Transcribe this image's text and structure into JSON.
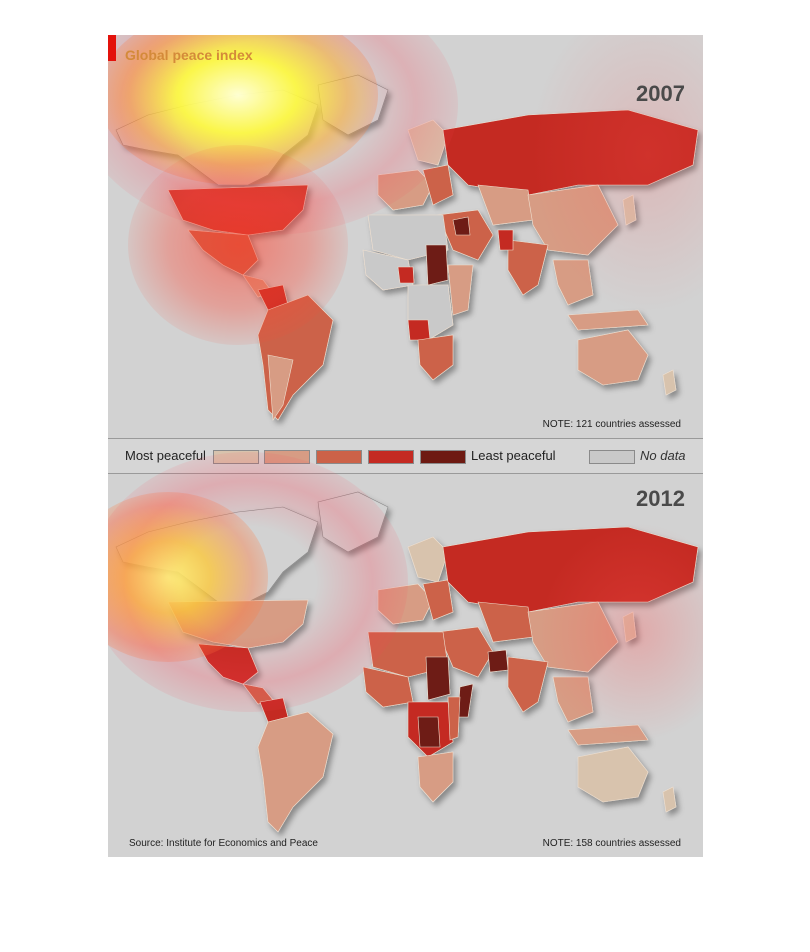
{
  "title": "Global peace index",
  "panels": [
    {
      "year": "2007",
      "note": "NOTE: 121 countries assessed"
    },
    {
      "year": "2012",
      "note": "NOTE: 158 countries assessed"
    }
  ],
  "legend": {
    "most": "Most peaceful",
    "least": "Least peaceful",
    "no_data": "No data",
    "colors": [
      "#d8c3ad",
      "#d79c84",
      "#cc6248",
      "#c42a22",
      "#6e1a12"
    ],
    "no_data_color": "#c9c9c9"
  },
  "source": "Source: Institute for Economics and Peace"
}
